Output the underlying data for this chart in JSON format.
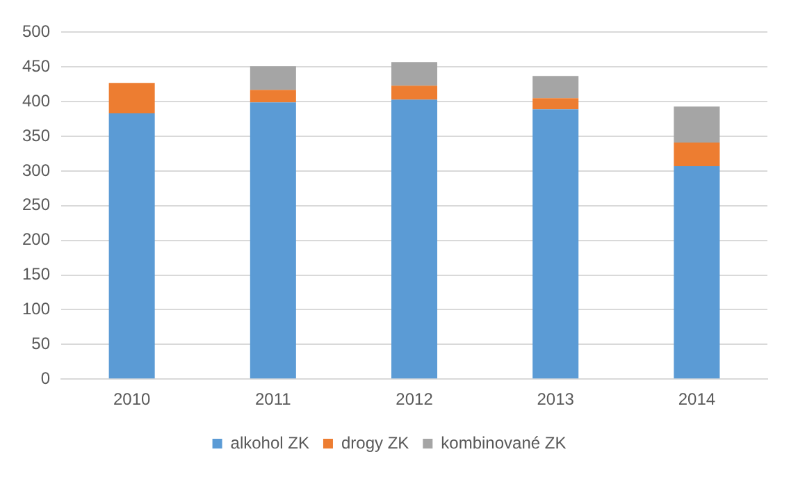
{
  "chart_data": {
    "type": "bar",
    "stacked": true,
    "categories": [
      "2010",
      "2011",
      "2012",
      "2013",
      "2014"
    ],
    "series": [
      {
        "name": "alkohol ZK",
        "color": "#5b9bd5",
        "values": [
          383,
          399,
          403,
          389,
          307
        ]
      },
      {
        "name": "drogy ZK",
        "color": "#ed7d31",
        "values": [
          44,
          18,
          20,
          16,
          34
        ]
      },
      {
        "name": "kombinované ZK",
        "color": "#a5a5a5",
        "values": [
          0,
          34,
          34,
          32,
          52
        ]
      }
    ],
    "ylim": [
      0,
      500
    ],
    "yticks": [
      0,
      50,
      100,
      150,
      200,
      250,
      300,
      350,
      400,
      450,
      500
    ],
    "grid": "y",
    "legend": "bottom"
  }
}
